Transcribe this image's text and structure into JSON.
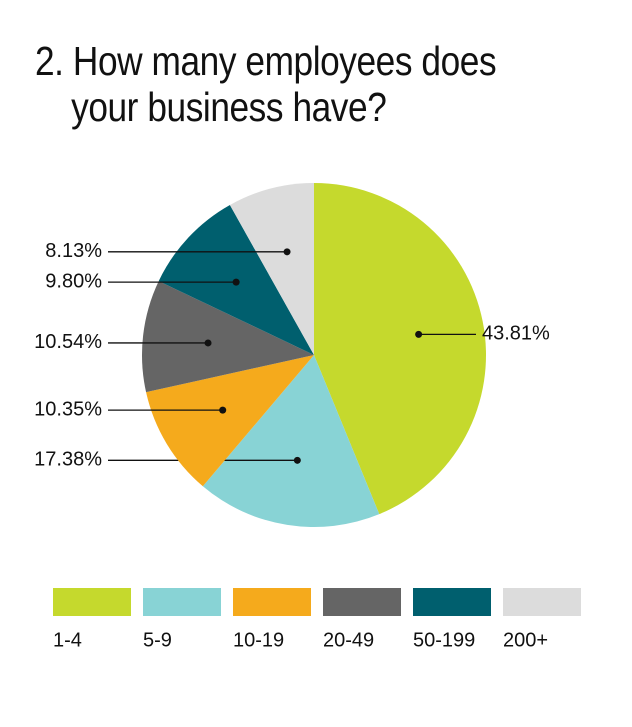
{
  "chart_data": {
    "type": "pie",
    "title": "2. How many employees does your business have?",
    "categories": [
      "1-4",
      "5-9",
      "10-19",
      "20-49",
      "50-199",
      "200+"
    ],
    "values": [
      43.81,
      17.38,
      10.35,
      10.54,
      9.8,
      8.13
    ],
    "value_labels": [
      "43.81%",
      "17.38%",
      "10.35%",
      "10.54%",
      "9.80%",
      "8.13%"
    ],
    "colors": [
      "#c5d92d",
      "#88d3d5",
      "#f5aa1c",
      "#656565",
      "#005f6e",
      "#dcdcdc"
    ],
    "legend": "bottom"
  }
}
